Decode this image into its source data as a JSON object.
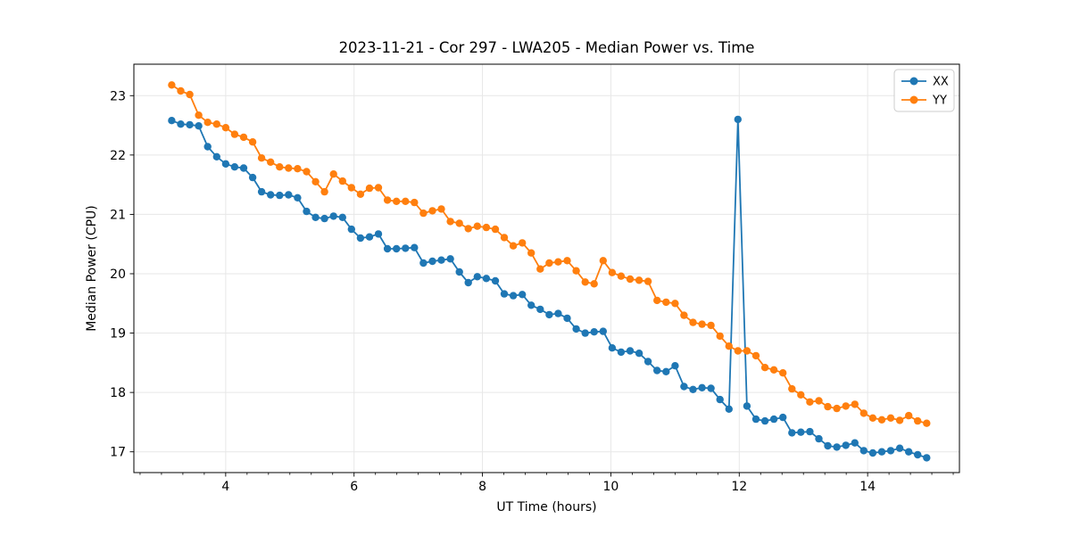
{
  "figure": {
    "title": "2023-11-21 - Cor 297 - LWA205 - Median Power vs. Time"
  },
  "chart_data": {
    "type": "line",
    "title": "2023-11-21 - Cor 297 - LWA205 - Median Power vs. Time",
    "xlabel": "UT Time (hours)",
    "ylabel": "Median Power (CPU)",
    "xlim": [
      2.57,
      15.43
    ],
    "ylim": [
      16.65,
      23.53
    ],
    "xticks": [
      4,
      6,
      8,
      10,
      12,
      14
    ],
    "yticks": [
      17,
      18,
      19,
      20,
      21,
      22,
      23
    ],
    "x_minor_step": 0.33333,
    "grid": true,
    "grid_color": "#e7e7e7",
    "legend_position": "upper right",
    "x": [
      3.16,
      3.3,
      3.44,
      3.58,
      3.72,
      3.86,
      4.0,
      4.14,
      4.28,
      4.42,
      4.56,
      4.7,
      4.84,
      4.98,
      5.12,
      5.26,
      5.4,
      5.54,
      5.68,
      5.82,
      5.96,
      6.1,
      6.24,
      6.38,
      6.52,
      6.66,
      6.8,
      6.94,
      7.08,
      7.22,
      7.36,
      7.5,
      7.64,
      7.78,
      7.92,
      8.06,
      8.2,
      8.34,
      8.48,
      8.62,
      8.76,
      8.9,
      9.04,
      9.18,
      9.32,
      9.46,
      9.6,
      9.74,
      9.88,
      10.02,
      10.16,
      10.3,
      10.44,
      10.58,
      10.72,
      10.86,
      11.0,
      11.14,
      11.28,
      11.42,
      11.56,
      11.7,
      11.84,
      11.98,
      12.12,
      12.26,
      12.4,
      12.54,
      12.68,
      12.82,
      12.96,
      13.1,
      13.24,
      13.38,
      13.52,
      13.66,
      13.8,
      13.94,
      14.08,
      14.22,
      14.36,
      14.5,
      14.64,
      14.78,
      14.92
    ],
    "series": [
      {
        "name": "XX",
        "color": "#1f77b4",
        "marker": "circle",
        "values": [
          22.58,
          22.52,
          22.51,
          22.49,
          22.14,
          21.97,
          21.85,
          21.8,
          21.78,
          21.62,
          21.38,
          21.33,
          21.32,
          21.33,
          21.28,
          21.05,
          20.95,
          20.93,
          20.97,
          20.95,
          20.75,
          20.6,
          20.62,
          20.67,
          20.42,
          20.42,
          20.43,
          20.44,
          20.18,
          20.21,
          20.23,
          20.25,
          20.03,
          19.85,
          19.95,
          19.92,
          19.88,
          19.66,
          19.63,
          19.65,
          19.47,
          19.4,
          19.31,
          19.33,
          19.25,
          19.07,
          19.0,
          19.02,
          19.03,
          18.75,
          18.68,
          18.7,
          18.66,
          18.52,
          18.37,
          18.35,
          18.45,
          18.1,
          18.05,
          18.08,
          18.07,
          17.88,
          17.72,
          22.6,
          17.77,
          17.55,
          17.52,
          17.55,
          17.58,
          17.32,
          17.33,
          17.34,
          17.22,
          17.1,
          17.08,
          17.11,
          17.15,
          17.02,
          16.98,
          17.0,
          17.02,
          17.06,
          17.0,
          16.95,
          16.9
        ]
      },
      {
        "name": "YY",
        "color": "#ff7f0e",
        "marker": "circle",
        "values": [
          23.18,
          23.08,
          23.02,
          22.67,
          22.55,
          22.52,
          22.46,
          22.35,
          22.3,
          22.22,
          21.95,
          21.88,
          21.8,
          21.78,
          21.77,
          21.72,
          21.55,
          21.38,
          21.68,
          21.56,
          21.45,
          21.34,
          21.44,
          21.45,
          21.24,
          21.22,
          21.22,
          21.2,
          21.02,
          21.06,
          21.09,
          20.88,
          20.85,
          20.76,
          20.8,
          20.78,
          20.75,
          20.61,
          20.47,
          20.52,
          20.35,
          20.08,
          20.18,
          20.2,
          20.22,
          20.05,
          19.86,
          19.83,
          20.22,
          20.02,
          19.96,
          19.91,
          19.89,
          19.87,
          19.55,
          19.52,
          19.5,
          19.3,
          19.18,
          19.15,
          19.13,
          18.95,
          18.78,
          18.7,
          18.7,
          18.62,
          18.42,
          18.38,
          18.33,
          18.06,
          17.96,
          17.84,
          17.86,
          17.76,
          17.73,
          17.77,
          17.8,
          17.65,
          17.57,
          17.54,
          17.57,
          17.53,
          17.61,
          17.52,
          17.48
        ]
      }
    ]
  }
}
